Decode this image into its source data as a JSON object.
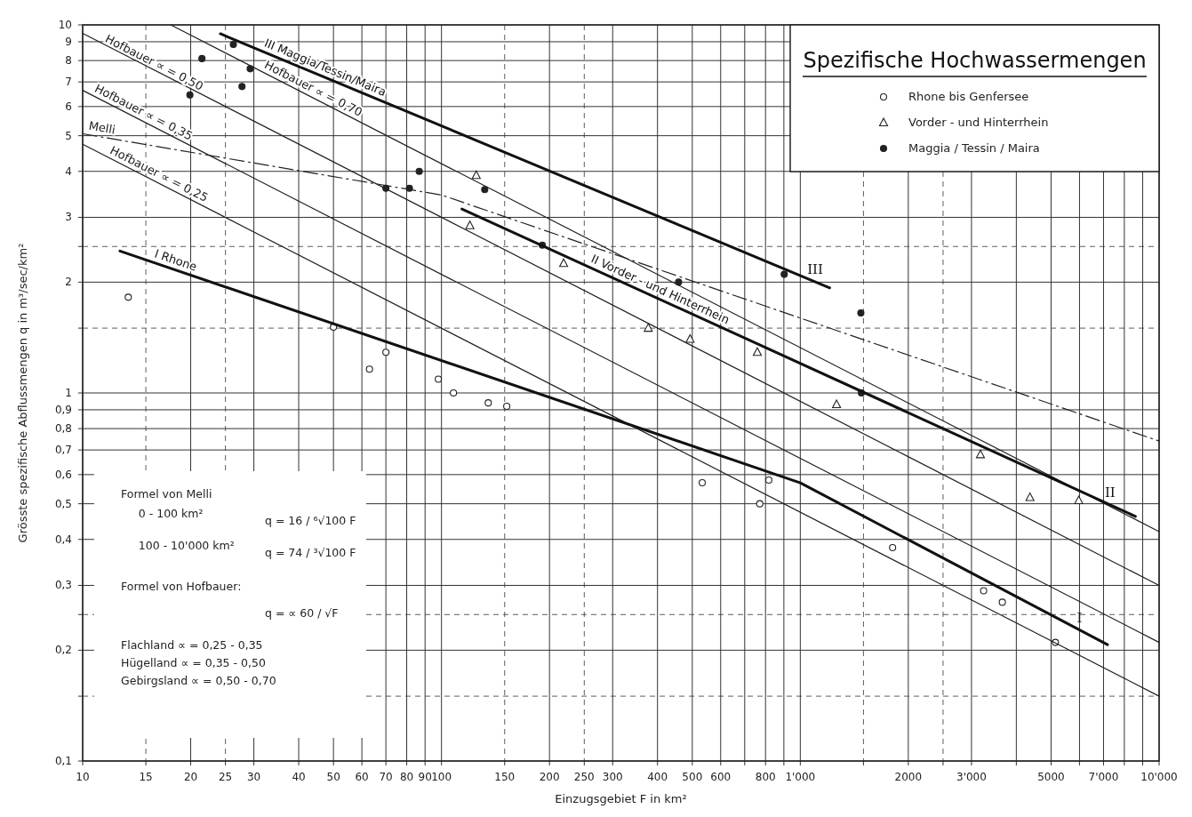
{
  "chart_data": {
    "type": "scatter",
    "title": "Spezifische Hochwassermengen",
    "xlabel": "Einzugsgebiet F in km²",
    "ylabel": "Grösste spezifische Abflussmengen q in m³/sec/km²",
    "log": "xy",
    "grid": true,
    "legend": "top right",
    "xlim": [
      10,
      10000
    ],
    "ylim": [
      0.1,
      10
    ],
    "xticks": [
      10,
      15,
      20,
      25,
      30,
      40,
      50,
      60,
      70,
      80,
      90,
      100,
      150,
      200,
      250,
      300,
      400,
      500,
      600,
      {
        "value": 700,
        "label": null
      },
      800,
      {
        "value": 900,
        "label": null
      },
      {
        "value": 1000,
        "label": "1'000"
      },
      {
        "value": 1500,
        "label": null
      },
      2000,
      {
        "value": 2500,
        "label": null
      },
      {
        "value": 3000,
        "label": "3'000"
      },
      {
        "value": 4000,
        "label": null
      },
      5000,
      {
        "value": 6000,
        "label": null
      },
      {
        "value": 7000,
        "label": "7'000"
      },
      {
        "value": 8000,
        "label": null
      },
      {
        "value": 9000,
        "label": null
      },
      {
        "value": 10000,
        "label": "10'000"
      }
    ],
    "yticks": [
      {
        "value": 0.1,
        "label": "0,1"
      },
      {
        "value": 0.15,
        "label": null
      },
      {
        "value": 0.2,
        "label": "0,2"
      },
      {
        "value": 0.25,
        "label": null
      },
      {
        "value": 0.3,
        "label": "0,3"
      },
      {
        "value": 0.4,
        "label": "0,4"
      },
      {
        "value": 0.5,
        "label": "0,5"
      },
      {
        "value": 0.6,
        "label": "0,6"
      },
      {
        "value": 0.7,
        "label": "0,7"
      },
      {
        "value": 0.8,
        "label": "0,8"
      },
      {
        "value": 0.9,
        "label": "0,9"
      },
      1,
      {
        "value": 1.5,
        "label": null
      },
      2,
      {
        "value": 2.5,
        "label": null
      },
      3,
      4,
      5,
      6,
      7,
      8,
      9,
      10
    ],
    "series": [
      {
        "name": "Rhone bis Genfersee",
        "marker": "circle",
        "color": "#222222",
        "x": [
          13.4,
          50,
          63,
          70,
          98,
          108,
          135,
          152,
          533,
          771,
          817,
          1808,
          3243,
          3656,
          5140
        ],
        "values": [
          1.82,
          1.51,
          1.16,
          1.29,
          1.09,
          1.0,
          0.94,
          0.92,
          0.57,
          0.5,
          0.58,
          0.38,
          0.29,
          0.27,
          0.21
        ]
      },
      {
        "name": "Vorder - und Hinterrhein",
        "marker": "triangle",
        "color": "#222222",
        "x": [
          125,
          120,
          219,
          377,
          493,
          759,
          1262,
          3177,
          4365,
          5970
        ],
        "values": [
          3.9,
          2.85,
          2.25,
          1.5,
          1.4,
          1.29,
          0.93,
          0.68,
          0.52,
          0.51
        ]
      },
      {
        "name": "Maggia / Tessin / Maira",
        "marker": "circle",
        "color": "#222222",
        "x": [
          26.3,
          21.5,
          29.3,
          27.8,
          19.9,
          86.7,
          70,
          81.4,
          132,
          191,
          458,
          902,
          1475,
          1480
        ],
        "values": [
          8.85,
          8.1,
          7.6,
          6.8,
          6.45,
          4.0,
          3.6,
          3.6,
          3.57,
          2.52,
          2.0,
          2.1,
          1.65,
          1.0
        ]
      },
      {
        "name": "Hofbauer ∝ = 0,70",
        "type": "line",
        "marker": "none",
        "line_style": "solid",
        "color": "#222222",
        "x": [
          17.6,
          10000
        ],
        "values": [
          10,
          0.42
        ]
      },
      {
        "name": "Hofbauer ∝ = 0,50",
        "type": "line",
        "marker": "none",
        "line_style": "solid",
        "color": "#222222",
        "x": [
          10,
          10000
        ],
        "values": [
          9.49,
          0.3
        ]
      },
      {
        "name": "Hofbauer ∝ = 0,35",
        "type": "line",
        "marker": "none",
        "line_style": "solid",
        "color": "#222222",
        "x": [
          10,
          10000
        ],
        "values": [
          6.64,
          0.21
        ]
      },
      {
        "name": "Hofbauer ∝ = 0,25",
        "type": "line",
        "marker": "none",
        "line_style": "solid",
        "color": "#222222",
        "x": [
          10,
          10000
        ],
        "values": [
          4.74,
          0.15
        ]
      },
      {
        "name": "Melli",
        "type": "line",
        "marker": "none",
        "line_style": "dashed",
        "color": "#222222",
        "x": [
          10,
          100,
          10000
        ],
        "values": [
          5.06,
          3.45,
          0.74
        ]
      },
      {
        "name": "I Rhone",
        "type": "line",
        "marker": "none",
        "line_style": "solid",
        "color": "#111111",
        "x": [
          12.7,
          1000,
          7180
        ],
        "values": [
          2.43,
          0.57,
          0.207
        ]
      },
      {
        "name": "II Vorder - und Hinterrhein",
        "type": "line",
        "marker": "none",
        "line_style": "solid",
        "color": "#111111",
        "x": [
          114,
          8590
        ],
        "values": [
          3.16,
          0.462
        ]
      },
      {
        "name": "III Maggia/Tessin/Maira",
        "type": "line",
        "marker": "none",
        "line_style": "solid",
        "color": "#111111",
        "x": [
          24.2,
          1208
        ],
        "values": [
          9.46,
          1.93
        ]
      }
    ],
    "annotations": [
      "Formel von Melli",
      "0 - 100 km²",
      "q = 16 / ⁶√100 F",
      "100 - 10'000 km²",
      "q = 74 / ³√100 F",
      "Formel von Hofbauer:",
      "q = ∝ 60 / √F",
      "Flachland   ∝ = 0,25 - 0,35",
      "Hügelland   ∝ = 0,35 - 0,50",
      "Gebirgsland  ∝ = 0,50 - 0,70",
      {
        "text": "III",
        "x": 1100,
        "y": 2.0
      },
      {
        "text": "II",
        "x": 7300,
        "y": 0.496
      },
      {
        "text": "I",
        "x": 6000,
        "y": 0.227
      }
    ]
  }
}
